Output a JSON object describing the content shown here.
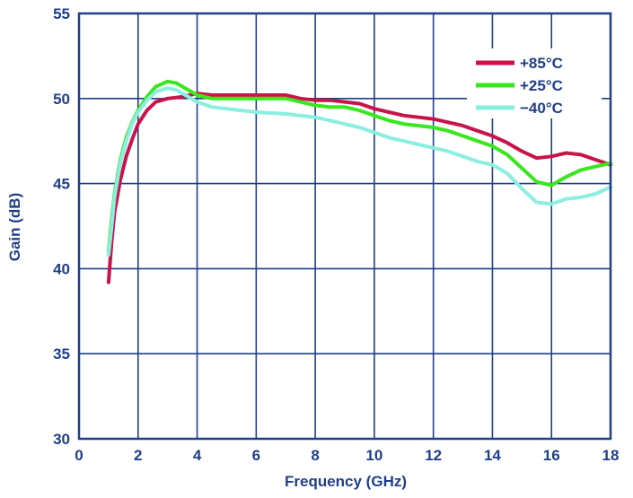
{
  "chart_data": {
    "type": "line",
    "title": "",
    "xlabel": "Frequency (GHz)",
    "ylabel": "Gain (dB)",
    "xlim": [
      0,
      18
    ],
    "ylim": [
      30,
      55
    ],
    "x_ticks": [
      0,
      2,
      4,
      6,
      8,
      10,
      12,
      14,
      16,
      18
    ],
    "y_ticks": [
      30,
      35,
      40,
      45,
      50,
      55
    ],
    "x_tick_labels": [
      "0",
      "2",
      "4",
      "6",
      "8",
      "10",
      "12",
      "14",
      "16",
      "18"
    ],
    "y_tick_labels": [
      "30",
      "35",
      "40",
      "45",
      "50",
      "55"
    ],
    "grid": true,
    "legend_position": "top-right",
    "colors": {
      "axis_text": "#1f3f8c",
      "grid": "#1f3f8c",
      "frame": "#1f3f8c"
    },
    "series": [
      {
        "name": "+85°C",
        "color": "#c8144a",
        "points": [
          [
            1.0,
            39.2
          ],
          [
            1.1,
            41.5
          ],
          [
            1.2,
            43.3
          ],
          [
            1.4,
            45.2
          ],
          [
            1.6,
            46.6
          ],
          [
            1.8,
            47.6
          ],
          [
            2.0,
            48.5
          ],
          [
            2.3,
            49.3
          ],
          [
            2.6,
            49.8
          ],
          [
            3.0,
            50.0
          ],
          [
            3.5,
            50.1
          ],
          [
            4.0,
            50.3
          ],
          [
            4.5,
            50.2
          ],
          [
            5.0,
            50.2
          ],
          [
            6.0,
            50.2
          ],
          [
            7.0,
            50.2
          ],
          [
            7.5,
            50.0
          ],
          [
            8.0,
            49.9
          ],
          [
            8.5,
            49.9
          ],
          [
            9.0,
            49.8
          ],
          [
            9.5,
            49.7
          ],
          [
            10.0,
            49.4
          ],
          [
            10.5,
            49.2
          ],
          [
            11.0,
            49.0
          ],
          [
            11.5,
            48.9
          ],
          [
            12.0,
            48.8
          ],
          [
            12.5,
            48.6
          ],
          [
            13.0,
            48.4
          ],
          [
            13.5,
            48.1
          ],
          [
            14.0,
            47.8
          ],
          [
            14.5,
            47.4
          ],
          [
            15.0,
            46.9
          ],
          [
            15.5,
            46.5
          ],
          [
            16.0,
            46.6
          ],
          [
            16.5,
            46.8
          ],
          [
            17.0,
            46.7
          ],
          [
            17.5,
            46.4
          ],
          [
            18.0,
            46.1
          ]
        ]
      },
      {
        "name": "+25°C",
        "color": "#3ae61e",
        "points": [
          [
            1.0,
            41.0
          ],
          [
            1.1,
            42.8
          ],
          [
            1.2,
            44.4
          ],
          [
            1.4,
            46.4
          ],
          [
            1.6,
            47.7
          ],
          [
            1.8,
            48.6
          ],
          [
            2.0,
            49.3
          ],
          [
            2.3,
            50.1
          ],
          [
            2.6,
            50.7
          ],
          [
            3.0,
            51.0
          ],
          [
            3.3,
            50.9
          ],
          [
            3.6,
            50.6
          ],
          [
            4.0,
            50.2
          ],
          [
            4.5,
            50.0
          ],
          [
            5.0,
            50.0
          ],
          [
            6.0,
            50.0
          ],
          [
            7.0,
            50.0
          ],
          [
            7.5,
            49.8
          ],
          [
            8.0,
            49.6
          ],
          [
            8.5,
            49.5
          ],
          [
            9.0,
            49.5
          ],
          [
            9.5,
            49.3
          ],
          [
            10.0,
            49.0
          ],
          [
            10.5,
            48.7
          ],
          [
            11.0,
            48.5
          ],
          [
            11.5,
            48.4
          ],
          [
            12.0,
            48.3
          ],
          [
            12.5,
            48.1
          ],
          [
            13.0,
            47.8
          ],
          [
            13.5,
            47.5
          ],
          [
            14.0,
            47.2
          ],
          [
            14.5,
            46.7
          ],
          [
            15.0,
            45.9
          ],
          [
            15.5,
            45.1
          ],
          [
            16.0,
            44.9
          ],
          [
            16.5,
            45.4
          ],
          [
            17.0,
            45.8
          ],
          [
            17.5,
            46.0
          ],
          [
            18.0,
            46.2
          ]
        ]
      },
      {
        "name": "−40°C",
        "color": "#8aeee0",
        "points": [
          [
            1.0,
            40.8
          ],
          [
            1.1,
            42.4
          ],
          [
            1.2,
            44.2
          ],
          [
            1.4,
            46.2
          ],
          [
            1.6,
            47.5
          ],
          [
            1.8,
            48.5
          ],
          [
            2.0,
            49.2
          ],
          [
            2.3,
            49.9
          ],
          [
            2.6,
            50.4
          ],
          [
            3.0,
            50.6
          ],
          [
            3.3,
            50.5
          ],
          [
            3.6,
            50.2
          ],
          [
            4.0,
            49.8
          ],
          [
            4.5,
            49.5
          ],
          [
            5.0,
            49.4
          ],
          [
            6.0,
            49.2
          ],
          [
            7.0,
            49.1
          ],
          [
            7.5,
            49.0
          ],
          [
            8.0,
            48.9
          ],
          [
            8.5,
            48.7
          ],
          [
            9.0,
            48.5
          ],
          [
            9.5,
            48.3
          ],
          [
            10.0,
            48.0
          ],
          [
            10.5,
            47.7
          ],
          [
            11.0,
            47.5
          ],
          [
            11.5,
            47.3
          ],
          [
            12.0,
            47.1
          ],
          [
            12.5,
            46.9
          ],
          [
            13.0,
            46.6
          ],
          [
            13.5,
            46.3
          ],
          [
            14.0,
            46.1
          ],
          [
            14.5,
            45.6
          ],
          [
            15.0,
            44.7
          ],
          [
            15.5,
            43.9
          ],
          [
            16.0,
            43.8
          ],
          [
            16.5,
            44.1
          ],
          [
            17.0,
            44.2
          ],
          [
            17.5,
            44.4
          ],
          [
            18.0,
            44.8
          ]
        ]
      }
    ]
  }
}
